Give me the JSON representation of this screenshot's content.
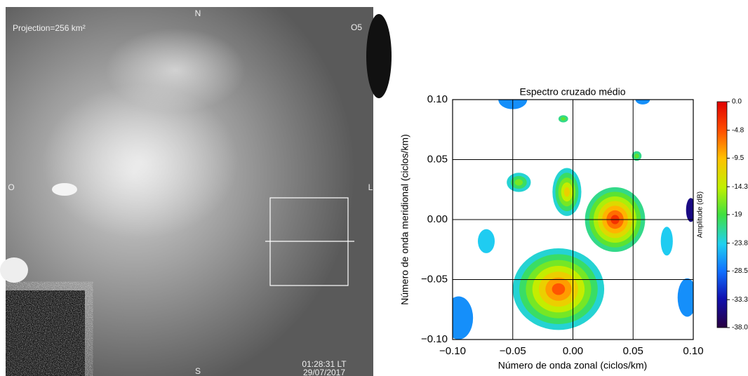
{
  "image": {
    "projection": "Projection=256 km²",
    "north": "N",
    "south": "S",
    "west": "O",
    "east": "L",
    "station": "O5",
    "time": "01:28:31 LT",
    "date": "29/07/2017"
  },
  "chart_data": {
    "type": "contour",
    "title": "Espectro cruzado médio",
    "x_label": "Número de onda zonal (ciclos/km)",
    "y_label": "Número de onda meridional (ciclos/km)",
    "colorbar_label": "Amplitude (dB)",
    "xlim": [
      -0.1,
      0.1
    ],
    "ylim": [
      -0.1,
      0.1
    ],
    "xticks": [
      {
        "value": -0.1,
        "label": "−0.10"
      },
      {
        "value": -0.05,
        "label": "−0.05"
      },
      {
        "value": 0,
        "label": "0.00"
      },
      {
        "value": 0.05,
        "label": "0.05"
      },
      {
        "value": 0.1,
        "label": "0.10"
      }
    ],
    "yticks": [
      {
        "value": -0.1,
        "label": "−0.10"
      },
      {
        "value": -0.05,
        "label": "−0.05"
      },
      {
        "value": 0,
        "label": "0.00"
      },
      {
        "value": 0.05,
        "label": "0.05"
      },
      {
        "value": 0.1,
        "label": "0.10"
      }
    ],
    "grid": true,
    "clim": [
      -38,
      0
    ],
    "cticks": [
      {
        "value": 0,
        "label": "0.0"
      },
      -4.8,
      -9.5,
      -14.3,
      -19.0,
      -23.8,
      -28.5,
      -33.3,
      {
        "value": -38,
        "label": "-38.0"
      }
    ],
    "peaks": [
      {
        "x": 0.035,
        "y": 0.0,
        "amplitude": -3,
        "rx": 0.025,
        "ry": 0.027
      },
      {
        "x": -0.012,
        "y": -0.058,
        "amplitude": -5,
        "rx": 0.038,
        "ry": 0.034
      },
      {
        "x": -0.005,
        "y": 0.023,
        "amplitude": -11,
        "rx": 0.012,
        "ry": 0.02
      },
      {
        "x": -0.045,
        "y": 0.031,
        "amplitude": -17,
        "rx": 0.01,
        "ry": 0.008
      },
      {
        "x": -0.008,
        "y": 0.084,
        "amplitude": -18,
        "rx": 0.004,
        "ry": 0.003
      },
      {
        "x": 0.053,
        "y": 0.053,
        "amplitude": -18,
        "rx": 0.004,
        "ry": 0.004
      },
      {
        "x": -0.072,
        "y": -0.018,
        "amplitude": -24,
        "rx": 0.007,
        "ry": 0.01
      },
      {
        "x": 0.078,
        "y": -0.018,
        "amplitude": -24,
        "rx": 0.005,
        "ry": 0.012
      },
      {
        "x": -0.05,
        "y": 0.1,
        "amplitude": -27,
        "rx": 0.012,
        "ry": 0.008
      },
      {
        "x": 0.058,
        "y": 0.1,
        "amplitude": -27,
        "rx": 0.006,
        "ry": 0.004
      },
      {
        "x": -0.095,
        "y": -0.082,
        "amplitude": -27,
        "rx": 0.012,
        "ry": 0.018
      },
      {
        "x": 0.095,
        "y": -0.065,
        "amplitude": -27,
        "rx": 0.008,
        "ry": 0.016
      },
      {
        "x": 0.098,
        "y": 0.008,
        "amplitude": -35,
        "rx": 0.004,
        "ry": 0.01
      }
    ]
  }
}
